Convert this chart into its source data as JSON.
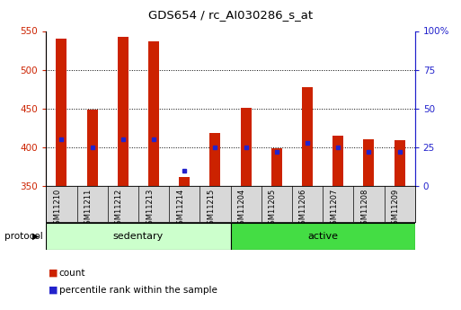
{
  "title": "GDS654 / rc_AI030286_s_at",
  "samples": [
    "GSM11210",
    "GSM11211",
    "GSM11212",
    "GSM11213",
    "GSM11214",
    "GSM11215",
    "GSM11204",
    "GSM11205",
    "GSM11206",
    "GSM11207",
    "GSM11208",
    "GSM11209"
  ],
  "count_values": [
    540,
    449,
    542,
    537,
    362,
    418,
    451,
    399,
    477,
    415,
    410,
    409
  ],
  "percentile_values": [
    30,
    25,
    30,
    30,
    10,
    25,
    25,
    22,
    28,
    25,
    22,
    22
  ],
  "count_base": 350,
  "left_ylim": [
    350,
    550
  ],
  "right_ylim": [
    0,
    100
  ],
  "left_yticks": [
    350,
    400,
    450,
    500,
    550
  ],
  "right_yticks": [
    0,
    25,
    50,
    75,
    100
  ],
  "right_yticklabels": [
    "0",
    "25",
    "50",
    "75",
    "100%"
  ],
  "group_labels": [
    "sedentary",
    "active"
  ],
  "group_colors": [
    "#ccffcc",
    "#44dd44"
  ],
  "bar_color": "#cc2200",
  "dot_color": "#2222cc",
  "grid_color": "#000000",
  "axis_color_left": "#cc2200",
  "axis_color_right": "#2222cc",
  "protocol_label": "protocol",
  "legend_count": "count",
  "legend_percentile": "percentile rank within the sample",
  "bar_width": 0.35
}
